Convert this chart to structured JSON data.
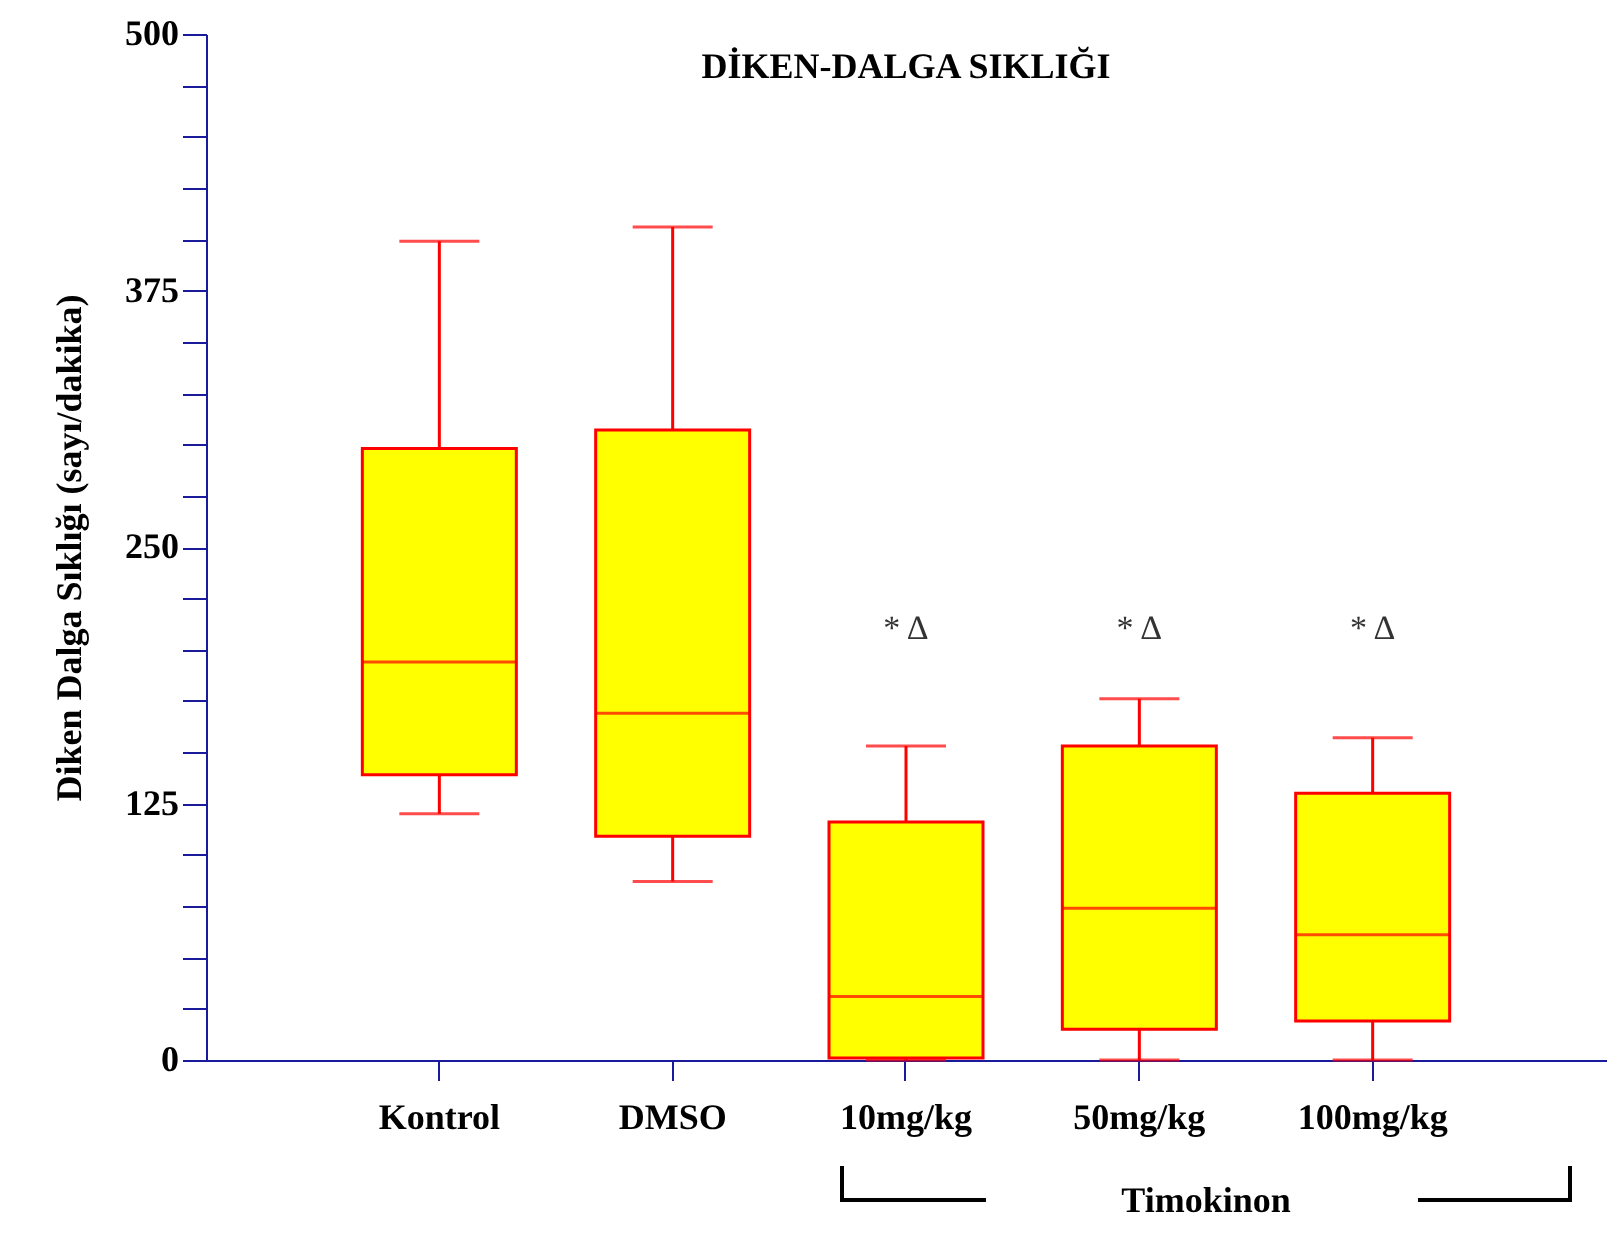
{
  "chart_data": {
    "type": "box",
    "title": "DİKEN-DALGA SIKLIĞI",
    "ylabel": "Diken  Dalga Sıklığı (sayı/dakika)",
    "categories": [
      "Kontrol",
      "DMSO",
      "10mg/kg",
      "50mg/kg",
      "100mg/kg"
    ],
    "series": [
      {
        "color": "#ffff00",
        "boxes": [
          {
            "low": 120,
            "q1": 139,
            "median": 194,
            "q3": 298,
            "high": 399
          },
          {
            "low": 87,
            "q1": 109,
            "median": 169,
            "q3": 307,
            "high": 406
          },
          {
            "low": 0,
            "q1": 1,
            "median": 31,
            "q3": 116,
            "high": 153
          },
          {
            "low": 0,
            "q1": 15,
            "median": 74,
            "q3": 153,
            "high": 176
          },
          {
            "low": 0,
            "q1": 19,
            "median": 61,
            "q3": 130,
            "high": 157
          }
        ]
      }
    ],
    "ylim": [
      0,
      500
    ],
    "yticks": [
      0,
      {
        "value": 25,
        "label": null
      },
      {
        "value": 50,
        "label": null
      },
      {
        "value": 75,
        "label": null
      },
      {
        "value": 100,
        "label": null
      },
      125,
      {
        "value": 150,
        "label": null
      },
      {
        "value": 175,
        "label": null
      },
      {
        "value": 200,
        "label": null
      },
      {
        "value": 225,
        "label": null
      },
      250,
      {
        "value": 275,
        "label": null
      },
      {
        "value": 300,
        "label": null
      },
      {
        "value": 325,
        "label": null
      },
      {
        "value": 350,
        "label": null
      },
      375,
      {
        "value": 400,
        "label": null
      },
      {
        "value": 425,
        "label": null
      },
      {
        "value": 450,
        "label": null
      },
      {
        "value": 475,
        "label": null
      },
      500
    ],
    "grid": false,
    "annotations": [
      "* Δ",
      "* Δ",
      "* Δ",
      "Timokinon"
    ]
  }
}
